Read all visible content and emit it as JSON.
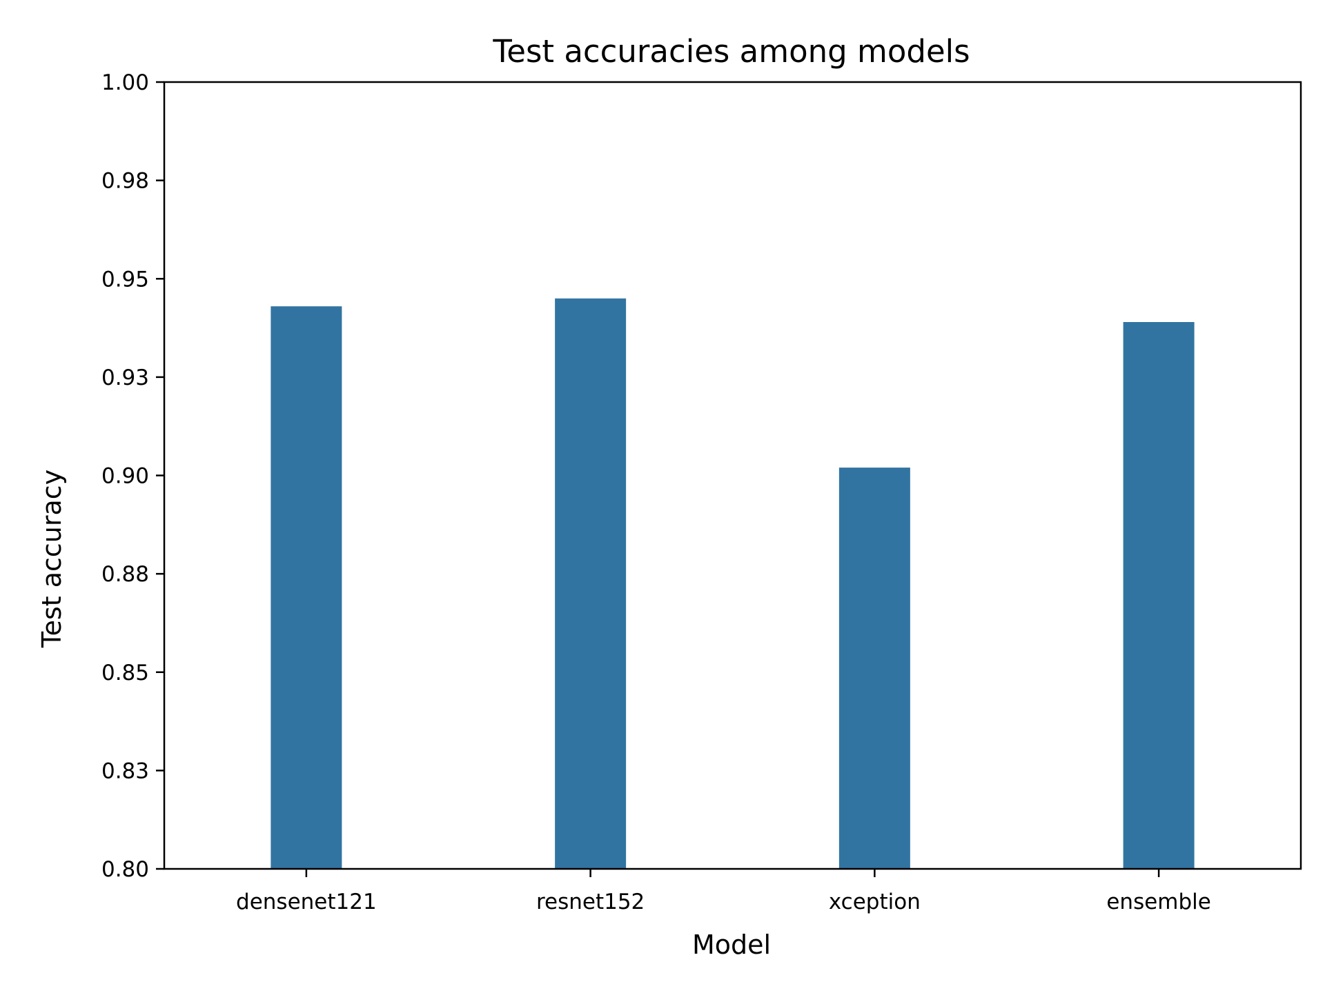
{
  "chart_data": {
    "type": "bar",
    "title": "Test accuracies among models",
    "xlabel": "Model",
    "ylabel": "Test accuracy",
    "categories": [
      "densenet121",
      "resnet152",
      "xception",
      "ensemble"
    ],
    "values": [
      0.943,
      0.945,
      0.902,
      0.939
    ],
    "ylim": [
      0.8,
      1.0
    ],
    "yticks": [
      0.8,
      0.825,
      0.85,
      0.875,
      0.9,
      0.925,
      0.95,
      0.975,
      1.0
    ],
    "ytick_labels": [
      "0.80",
      "0.83",
      "0.85",
      "0.88",
      "0.90",
      "0.93",
      "0.95",
      "0.98",
      "1.00"
    ],
    "bar_color": "#3274a1",
    "grid": false,
    "legend": "none"
  }
}
